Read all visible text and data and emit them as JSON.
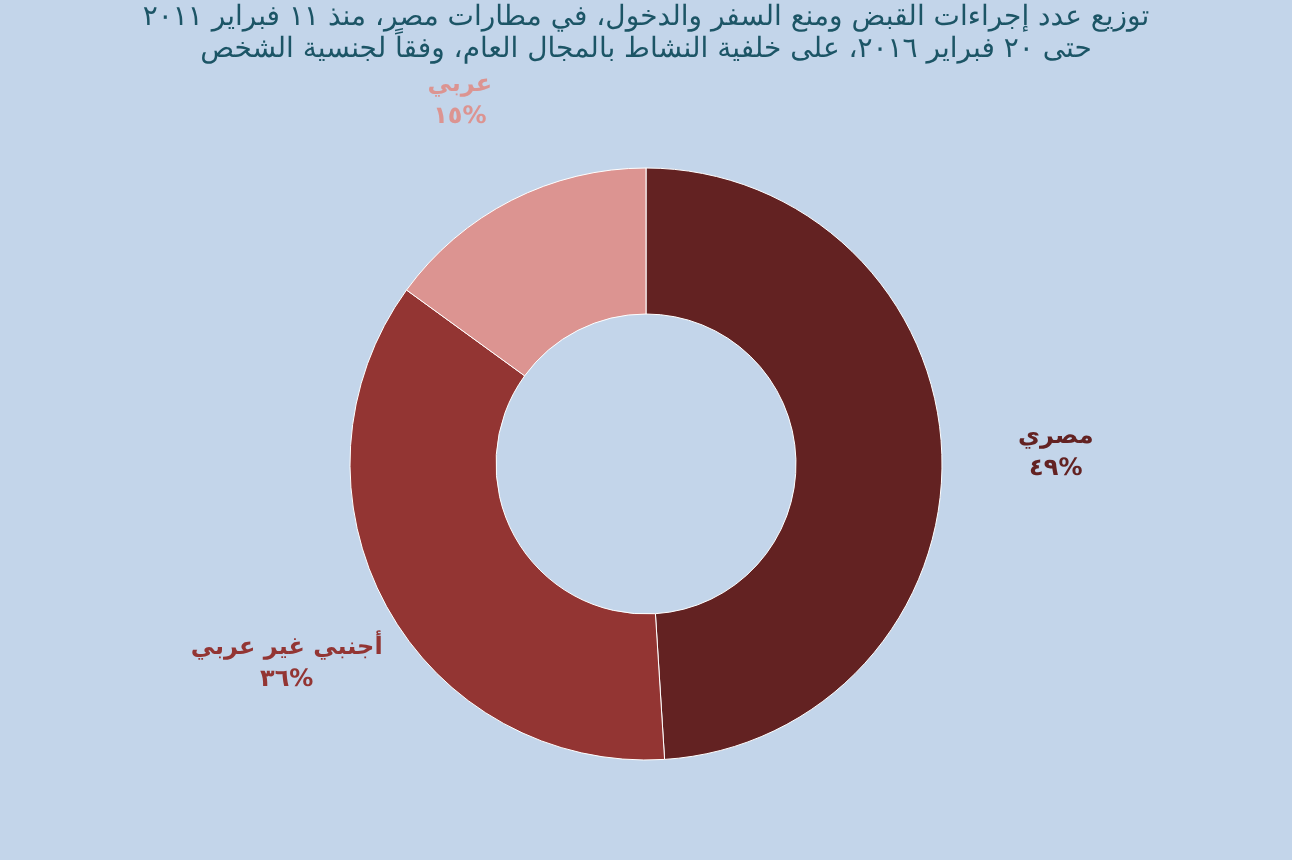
{
  "chart_data": {
    "type": "donut",
    "title": "توزيع عدد إجراءات القبض ومنع السفر والدخول، في مطارات مصر، منذ ١١ فبراير ٢٠١١\nحتى ٢٠ فبراير ٢٠١٦، على خلفية النشاط بالمجال العام، وفقاً لجنسية الشخص",
    "categories": [
      "مصري",
      "أجنبي غير عربي",
      "عربي"
    ],
    "values": [
      49,
      36,
      15
    ],
    "colors": [
      "#632222",
      "#933533",
      "#dc9491"
    ],
    "value_labels": [
      "٤٩%",
      "٣٦%",
      "١٥%"
    ],
    "legend": false
  }
}
